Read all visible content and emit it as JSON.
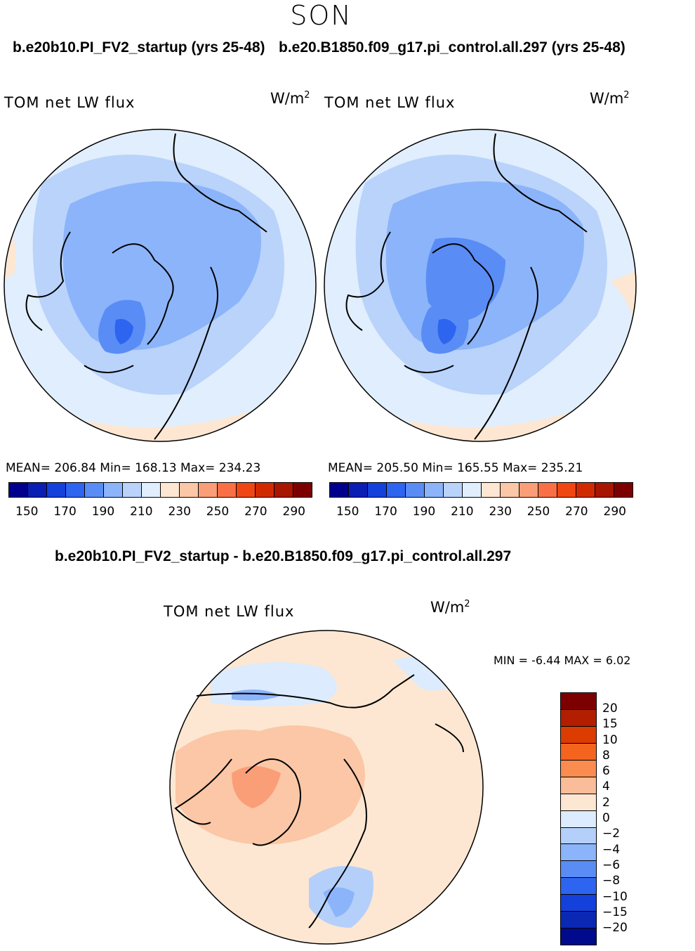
{
  "header": {
    "season": "SON"
  },
  "panels": {
    "left": {
      "title": "b.e20b10.PI_FV2_startup (yrs 25-48)",
      "variable": "TOM net LW flux",
      "unit_base": "W/m",
      "unit_exp": "2",
      "stats": "MEAN= 206.84   Min= 168.13   Max= 234.23"
    },
    "right": {
      "title": "b.e20.B1850.f09_g17.pi_control.all.297 (yrs 25-48)",
      "variable": "TOM net LW flux",
      "unit_base": "W/m",
      "unit_exp": "2",
      "stats": "MEAN= 205.50   Min= 165.55   Max= 235.21"
    },
    "diff": {
      "title": "b.e20b10.PI_FV2_startup - b.e20.B1850.f09_g17.pi_control.all.297",
      "variable": "TOM net LW flux",
      "unit_base": "W/m",
      "unit_exp": "2",
      "minmax": "MIN =   -6.44  MAX =     6.02"
    }
  },
  "colorbar_abs": {
    "colors": [
      "#00008c",
      "#0a1eb4",
      "#1440dc",
      "#2d64f0",
      "#5a8cf5",
      "#8cb4fa",
      "#b9d3fb",
      "#e1eefd",
      "#fde7d2",
      "#fbc7a6",
      "#fa9e78",
      "#fa7046",
      "#f04614",
      "#d22a00",
      "#a81500",
      "#7d0000"
    ],
    "ticks": [
      "150",
      "170",
      "190",
      "210",
      "230",
      "250",
      "270",
      "290"
    ]
  },
  "colorbar_diff": {
    "colors": [
      "#7d0000",
      "#b41e00",
      "#dc3c00",
      "#f5641e",
      "#fa8c50",
      "#fbbd99",
      "#fde7d2",
      "#dcebfd",
      "#b4d0fa",
      "#8cb4fa",
      "#5a8cf5",
      "#2d64f0",
      "#1440dc",
      "#0a28b4",
      "#000a8c"
    ],
    "labels": [
      "20",
      "15",
      "10",
      "8",
      "6",
      "4",
      "2",
      "0",
      "−2",
      "−4",
      "−6",
      "−8",
      "−10",
      "−15",
      "−20"
    ]
  }
}
